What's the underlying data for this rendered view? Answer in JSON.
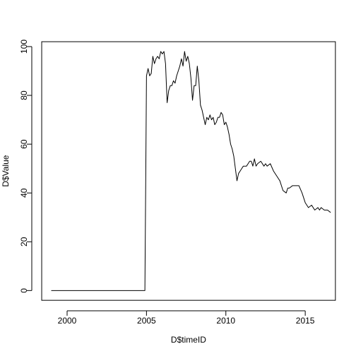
{
  "chart_data": {
    "type": "line",
    "title": "",
    "xlabel": "D$timeID",
    "ylabel": "D$Value",
    "xlim": [
      1998.4,
      2016.9
    ],
    "ylim": [
      -4,
      102
    ],
    "grid": false,
    "legend": "none",
    "line_color": "#000000",
    "xticks": [
      2000,
      2005,
      2010,
      2015
    ],
    "xtick_labels": [
      "2000",
      "2005",
      "2010",
      "2015"
    ],
    "yticks": [
      0,
      20,
      40,
      60,
      80,
      100
    ],
    "ytick_labels": [
      "0",
      "20",
      "40",
      "60",
      "80",
      "100"
    ],
    "series": [
      {
        "x": [
          1999.0,
          2004.9,
          2004.95,
          2005.0,
          2005.1,
          2005.2,
          2005.3,
          2005.4,
          2005.5,
          2005.6,
          2005.7,
          2005.8,
          2005.9,
          2006.0,
          2006.1,
          2006.2,
          2006.3,
          2006.4,
          2006.5,
          2006.6,
          2006.7,
          2006.8,
          2006.9,
          2007.0,
          2007.1,
          2007.2,
          2007.3,
          2007.4,
          2007.5,
          2007.6,
          2007.7,
          2007.8,
          2007.9,
          2008.0,
          2008.1,
          2008.2,
          2008.3,
          2008.4,
          2008.5,
          2008.6,
          2008.7,
          2008.8,
          2008.9,
          2009.0,
          2009.1,
          2009.2,
          2009.3,
          2009.4,
          2009.5,
          2009.6,
          2009.7,
          2009.8,
          2009.9,
          2010.0,
          2010.1,
          2010.2,
          2010.3,
          2010.4,
          2010.5,
          2010.6,
          2010.7,
          2010.8,
          2010.9,
          2011.0,
          2011.1,
          2011.2,
          2011.3,
          2011.4,
          2011.5,
          2011.6,
          2011.7,
          2011.8,
          2011.9,
          2012.0,
          2012.2,
          2012.4,
          2012.5,
          2012.6,
          2012.8,
          2013.0,
          2013.2,
          2013.4,
          2013.6,
          2013.8,
          2013.9,
          2014.0,
          2014.2,
          2014.4,
          2014.6,
          2014.8,
          2014.9,
          2015.0,
          2015.2,
          2015.4,
          2015.6,
          2015.8,
          2015.9,
          2016.0,
          2016.2,
          2016.4,
          2016.6
        ],
        "values": [
          0,
          0,
          43,
          88,
          91,
          88,
          89,
          96,
          93,
          95,
          96,
          95,
          98,
          97,
          98,
          93,
          77,
          82,
          84,
          84,
          86,
          85,
          88,
          90,
          92,
          95,
          92,
          98,
          94,
          96,
          93,
          87,
          78,
          84,
          84,
          92,
          86,
          76,
          74,
          71,
          68,
          71,
          70,
          72,
          70,
          71,
          68,
          69,
          71,
          71,
          73,
          72,
          68,
          69,
          67,
          64,
          60,
          58,
          55,
          50,
          45,
          48,
          49,
          50,
          51,
          51,
          51,
          52,
          53,
          53,
          51,
          54,
          51,
          52,
          53,
          51,
          52,
          51,
          52,
          49,
          47,
          45,
          41,
          40,
          42,
          42,
          43,
          43,
          43,
          40,
          38,
          36,
          34,
          35,
          33,
          34,
          33,
          34,
          33,
          33,
          32
        ]
      }
    ]
  }
}
